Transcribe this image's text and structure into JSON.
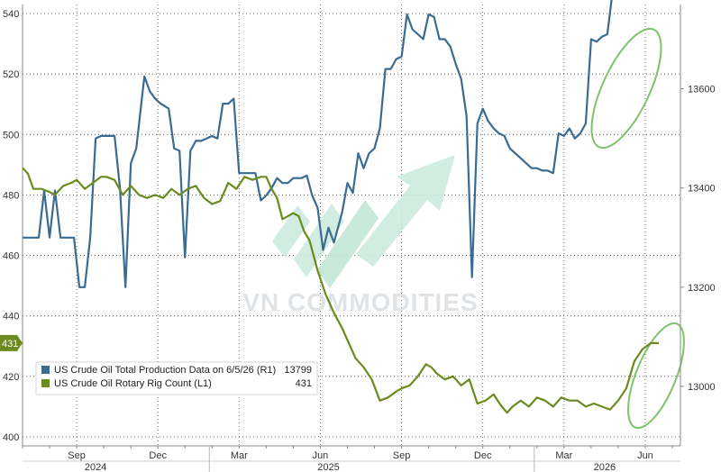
{
  "chart_data": {
    "type": "line",
    "watermark": "VN COMMODITIES",
    "colors": {
      "production": "#3a6b91",
      "rigs": "#6b8a1f",
      "annotation": "#7cc46a",
      "grid": "#555555",
      "watermark_arrow": "#c9e9dc"
    },
    "x_ticks": [
      {
        "label": "Sep",
        "m": 2
      },
      {
        "label": "Dec",
        "m": 5
      },
      {
        "label": "Mar",
        "m": 8
      },
      {
        "label": "Jun",
        "m": 11
      },
      {
        "label": "Sep",
        "m": 14
      },
      {
        "label": "Dec",
        "m": 17
      },
      {
        "label": "Mar",
        "m": 20
      },
      {
        "label": "Jun",
        "m": 23
      }
    ],
    "years": [
      {
        "label": "2024",
        "m": 2.7
      },
      {
        "label": "2025",
        "m": 11.3
      },
      {
        "label": "2026",
        "m": 21.5
      }
    ],
    "xlim": [
      0,
      24.3
    ],
    "left_axis": {
      "ticks": [
        400,
        420,
        440,
        460,
        480,
        500,
        520,
        540
      ],
      "lim": [
        397,
        543
      ]
    },
    "right_axis": {
      "ticks": [
        13000,
        13200,
        13400,
        13600
      ],
      "lim": [
        12880,
        13770
      ]
    },
    "legend": {
      "entries": [
        {
          "label": "US Crude Oil Total Production Data on 6/5/26 (R1)",
          "value": "13799",
          "color": "#3a6b91"
        },
        {
          "label": "US Crude Oil Rotary Rig Count (L1)",
          "value": "431",
          "color": "#6b8a1f"
        }
      ]
    },
    "last_value_tags": {
      "production": "13799",
      "rigs": "431"
    },
    "series": [
      {
        "name": "US Crude Oil Total Production Data on 6/5/26 (R1)",
        "axis": "right",
        "color": "#3a6b91",
        "points": [
          [
            0,
            13300
          ],
          [
            0.3,
            13300
          ],
          [
            0.6,
            13300
          ],
          [
            0.8,
            13395
          ],
          [
            1.0,
            13300
          ],
          [
            1.2,
            13395
          ],
          [
            1.4,
            13300
          ],
          [
            1.6,
            13300
          ],
          [
            1.9,
            13300
          ],
          [
            2.1,
            13200
          ],
          [
            2.3,
            13200
          ],
          [
            2.5,
            13300
          ],
          [
            2.7,
            13500
          ],
          [
            2.9,
            13505
          ],
          [
            3.1,
            13505
          ],
          [
            3.4,
            13505
          ],
          [
            3.6,
            13400
          ],
          [
            3.8,
            13200
          ],
          [
            4.0,
            13450
          ],
          [
            4.2,
            13480
          ],
          [
            4.5,
            13625
          ],
          [
            4.7,
            13595
          ],
          [
            4.9,
            13580
          ],
          [
            5.1,
            13570
          ],
          [
            5.4,
            13560
          ],
          [
            5.6,
            13480
          ],
          [
            5.8,
            13475
          ],
          [
            6.0,
            13260
          ],
          [
            6.2,
            13475
          ],
          [
            6.4,
            13495
          ],
          [
            6.6,
            13495
          ],
          [
            6.8,
            13500
          ],
          [
            7.0,
            13505
          ],
          [
            7.2,
            13500
          ],
          [
            7.4,
            13570
          ],
          [
            7.6,
            13570
          ],
          [
            7.8,
            13580
          ],
          [
            8.0,
            13430
          ],
          [
            8.2,
            13430
          ],
          [
            8.4,
            13430
          ],
          [
            8.6,
            13430
          ],
          [
            8.8,
            13375
          ],
          [
            9.0,
            13385
          ],
          [
            9.2,
            13400
          ],
          [
            9.4,
            13420
          ],
          [
            9.6,
            13410
          ],
          [
            9.8,
            13410
          ],
          [
            10.0,
            13420
          ],
          [
            10.3,
            13420
          ],
          [
            10.5,
            13425
          ],
          [
            10.7,
            13385
          ],
          [
            10.9,
            13360
          ],
          [
            11.1,
            13275
          ],
          [
            11.3,
            13320
          ],
          [
            11.5,
            13290
          ],
          [
            11.8,
            13350
          ],
          [
            12.0,
            13410
          ],
          [
            12.2,
            13390
          ],
          [
            12.4,
            13470
          ],
          [
            12.6,
            13440
          ],
          [
            12.8,
            13470
          ],
          [
            13.0,
            13480
          ],
          [
            13.2,
            13520
          ],
          [
            13.4,
            13640
          ],
          [
            13.6,
            13640
          ],
          [
            13.8,
            13660
          ],
          [
            14.0,
            13665
          ],
          [
            14.2,
            13750
          ],
          [
            14.4,
            13720
          ],
          [
            14.6,
            13710
          ],
          [
            14.8,
            13700
          ],
          [
            15.0,
            13750
          ],
          [
            15.2,
            13745
          ],
          [
            15.4,
            13700
          ],
          [
            15.6,
            13700
          ],
          [
            15.8,
            13685
          ],
          [
            16.0,
            13650
          ],
          [
            16.2,
            13620
          ],
          [
            16.4,
            13545
          ],
          [
            16.6,
            13220
          ],
          [
            16.8,
            13530
          ],
          [
            17.0,
            13560
          ],
          [
            17.2,
            13535
          ],
          [
            17.4,
            13520
          ],
          [
            17.6,
            13510
          ],
          [
            17.8,
            13505
          ],
          [
            18.0,
            13480
          ],
          [
            18.2,
            13470
          ],
          [
            18.4,
            13460
          ],
          [
            18.6,
            13450
          ],
          [
            18.8,
            13440
          ],
          [
            19.0,
            13440
          ],
          [
            19.2,
            13435
          ],
          [
            19.4,
            13435
          ],
          [
            19.6,
            13430
          ],
          [
            19.8,
            13510
          ],
          [
            20.0,
            13505
          ],
          [
            20.2,
            13520
          ],
          [
            20.4,
            13500
          ],
          [
            20.6,
            13510
          ],
          [
            20.8,
            13530
          ],
          [
            21.0,
            13700
          ],
          [
            21.2,
            13695
          ],
          [
            21.4,
            13705
          ],
          [
            21.6,
            13710
          ],
          [
            21.8,
            13799
          ],
          [
            22.0,
            13799
          ]
        ]
      },
      {
        "name": "US Crude Oil Rotary Rig Count (L1)",
        "axis": "left",
        "color": "#6b8a1f",
        "points": [
          [
            0,
            489
          ],
          [
            0.2,
            487
          ],
          [
            0.4,
            482
          ],
          [
            0.7,
            482
          ],
          [
            1.0,
            481
          ],
          [
            1.2,
            480
          ],
          [
            1.5,
            483
          ],
          [
            1.8,
            484
          ],
          [
            2.0,
            485
          ],
          [
            2.3,
            482
          ],
          [
            2.6,
            484
          ],
          [
            2.9,
            486
          ],
          [
            3.1,
            486
          ],
          [
            3.4,
            485
          ],
          [
            3.7,
            480
          ],
          [
            4.0,
            483
          ],
          [
            4.3,
            480
          ],
          [
            4.6,
            479
          ],
          [
            4.9,
            480
          ],
          [
            5.2,
            479
          ],
          [
            5.5,
            482
          ],
          [
            5.8,
            480
          ],
          [
            6.1,
            482
          ],
          [
            6.4,
            483
          ],
          [
            6.7,
            479
          ],
          [
            7.0,
            477
          ],
          [
            7.3,
            478
          ],
          [
            7.6,
            484
          ],
          [
            7.9,
            482
          ],
          [
            8.2,
            486
          ],
          [
            8.5,
            485
          ],
          [
            8.8,
            486
          ],
          [
            9.0,
            486
          ],
          [
            9.2,
            482
          ],
          [
            9.4,
            479
          ],
          [
            9.6,
            472
          ],
          [
            9.8,
            473
          ],
          [
            10.0,
            474
          ],
          [
            10.2,
            473
          ],
          [
            10.4,
            468
          ],
          [
            10.6,
            465
          ],
          [
            10.9,
            455
          ],
          [
            11.2,
            447
          ],
          [
            11.5,
            441
          ],
          [
            11.8,
            436
          ],
          [
            12.0,
            432
          ],
          [
            12.3,
            426
          ],
          [
            12.6,
            423
          ],
          [
            12.9,
            419
          ],
          [
            13.2,
            412
          ],
          [
            13.5,
            413
          ],
          [
            13.8,
            415
          ],
          [
            14.0,
            416
          ],
          [
            14.3,
            417
          ],
          [
            14.6,
            420
          ],
          [
            14.9,
            424
          ],
          [
            15.1,
            423
          ],
          [
            15.3,
            421
          ],
          [
            15.6,
            419
          ],
          [
            15.9,
            420
          ],
          [
            16.2,
            417
          ],
          [
            16.5,
            419
          ],
          [
            16.8,
            411
          ],
          [
            17.1,
            412
          ],
          [
            17.4,
            414
          ],
          [
            17.7,
            410
          ],
          [
            17.9,
            408
          ],
          [
            18.1,
            410
          ],
          [
            18.4,
            412
          ],
          [
            18.7,
            410
          ],
          [
            19.0,
            413
          ],
          [
            19.3,
            412
          ],
          [
            19.6,
            410
          ],
          [
            19.9,
            413
          ],
          [
            20.2,
            412
          ],
          [
            20.5,
            412
          ],
          [
            20.8,
            410
          ],
          [
            21.1,
            411
          ],
          [
            21.4,
            410
          ],
          [
            21.7,
            409
          ],
          [
            22.0,
            412
          ],
          [
            22.3,
            416
          ],
          [
            22.6,
            425
          ],
          [
            22.9,
            429
          ],
          [
            23.2,
            431
          ],
          [
            23.5,
            431
          ]
        ]
      }
    ]
  }
}
